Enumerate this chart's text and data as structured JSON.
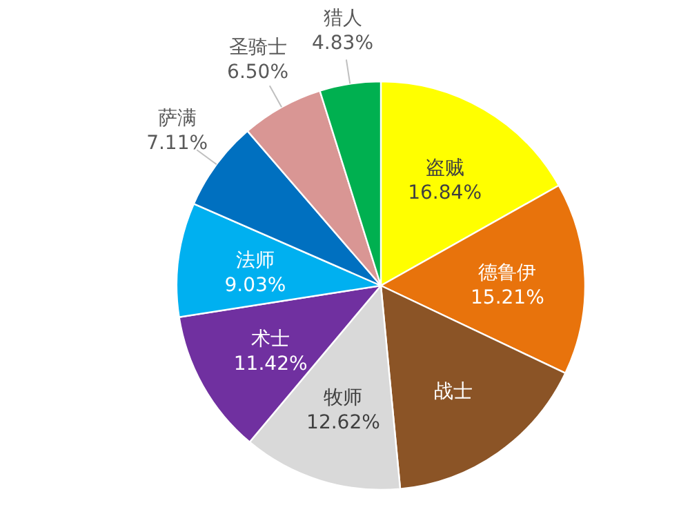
{
  "chart_data": {
    "type": "pie",
    "categories": [
      "盗贼",
      "德鲁伊",
      "战士",
      "牧师",
      "术士",
      "法师",
      "萨满",
      "圣骑士",
      "猎人"
    ],
    "values": [
      16.84,
      15.21,
      16.44,
      12.62,
      11.42,
      9.03,
      7.11,
      6.5,
      4.83
    ],
    "value_labels": [
      "16.84%",
      "15.21%",
      null,
      "12.62%",
      "11.42%",
      "9.03%",
      "7.11%",
      "6.50%",
      "4.83%"
    ],
    "colors": [
      "#ffff00",
      "#e8730c",
      "#8b5426",
      "#d9d9d9",
      "#7030a0",
      "#00b0f0",
      "#0070c0",
      "#d99694",
      "#00b050"
    ],
    "legend": false
  }
}
